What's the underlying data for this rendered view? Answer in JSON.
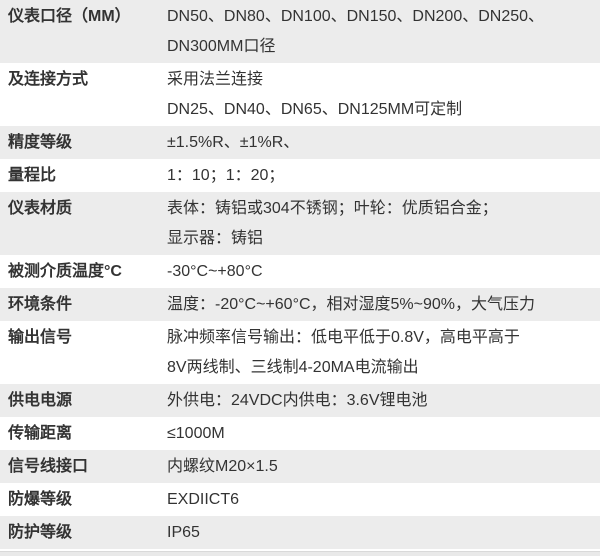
{
  "table": {
    "rows": [
      {
        "label": "仪表口径（MM）",
        "lines": [
          "DN50、DN80、DN100、DN150、DN200、DN250、",
          "DN300MM口径"
        ]
      },
      {
        "label": "及连接方式",
        "lines": [
          "采用法兰连接",
          "DN25、DN40、DN65、DN125MM可定制"
        ]
      },
      {
        "label": "精度等级",
        "lines": [
          "±1.5%R、±1%R、"
        ]
      },
      {
        "label": "量程比",
        "lines": [
          "1：10；1：20；"
        ]
      },
      {
        "label": "仪表材质",
        "lines": [
          "表体：铸铝或304不锈钢；叶轮：优质铝合金；",
          "显示器：铸铝"
        ]
      },
      {
        "label": "被测介质温度°C",
        "lines": [
          "-30°C~+80°C"
        ]
      },
      {
        "label": "环境条件",
        "lines": [
          "温度：-20°C~+60°C，相对湿度5%~90%，大气压力"
        ]
      },
      {
        "label": "输出信号",
        "lines": [
          "脉冲频率信号输出：低电平低于0.8V，高电平高于",
          "8V两线制、三线制4-20MA电流输出"
        ]
      },
      {
        "label": "供电电源",
        "lines": [
          "外供电：24VDC内供电：3.6V锂电池"
        ]
      },
      {
        "label": "传输距离",
        "lines": [
          "≤1000M"
        ]
      },
      {
        "label": "信号线接口",
        "lines": [
          "内螺纹M20×1.5"
        ]
      },
      {
        "label": "防爆等级",
        "lines": [
          "EXDIICT6"
        ]
      },
      {
        "label": "防护等级",
        "lines": [
          "IP65"
        ]
      }
    ],
    "colors": {
      "row_alt_bg": "#ececec",
      "row_bg": "#ffffff",
      "text": "#333333",
      "scrollbar_track": "#e9e9e9"
    }
  }
}
